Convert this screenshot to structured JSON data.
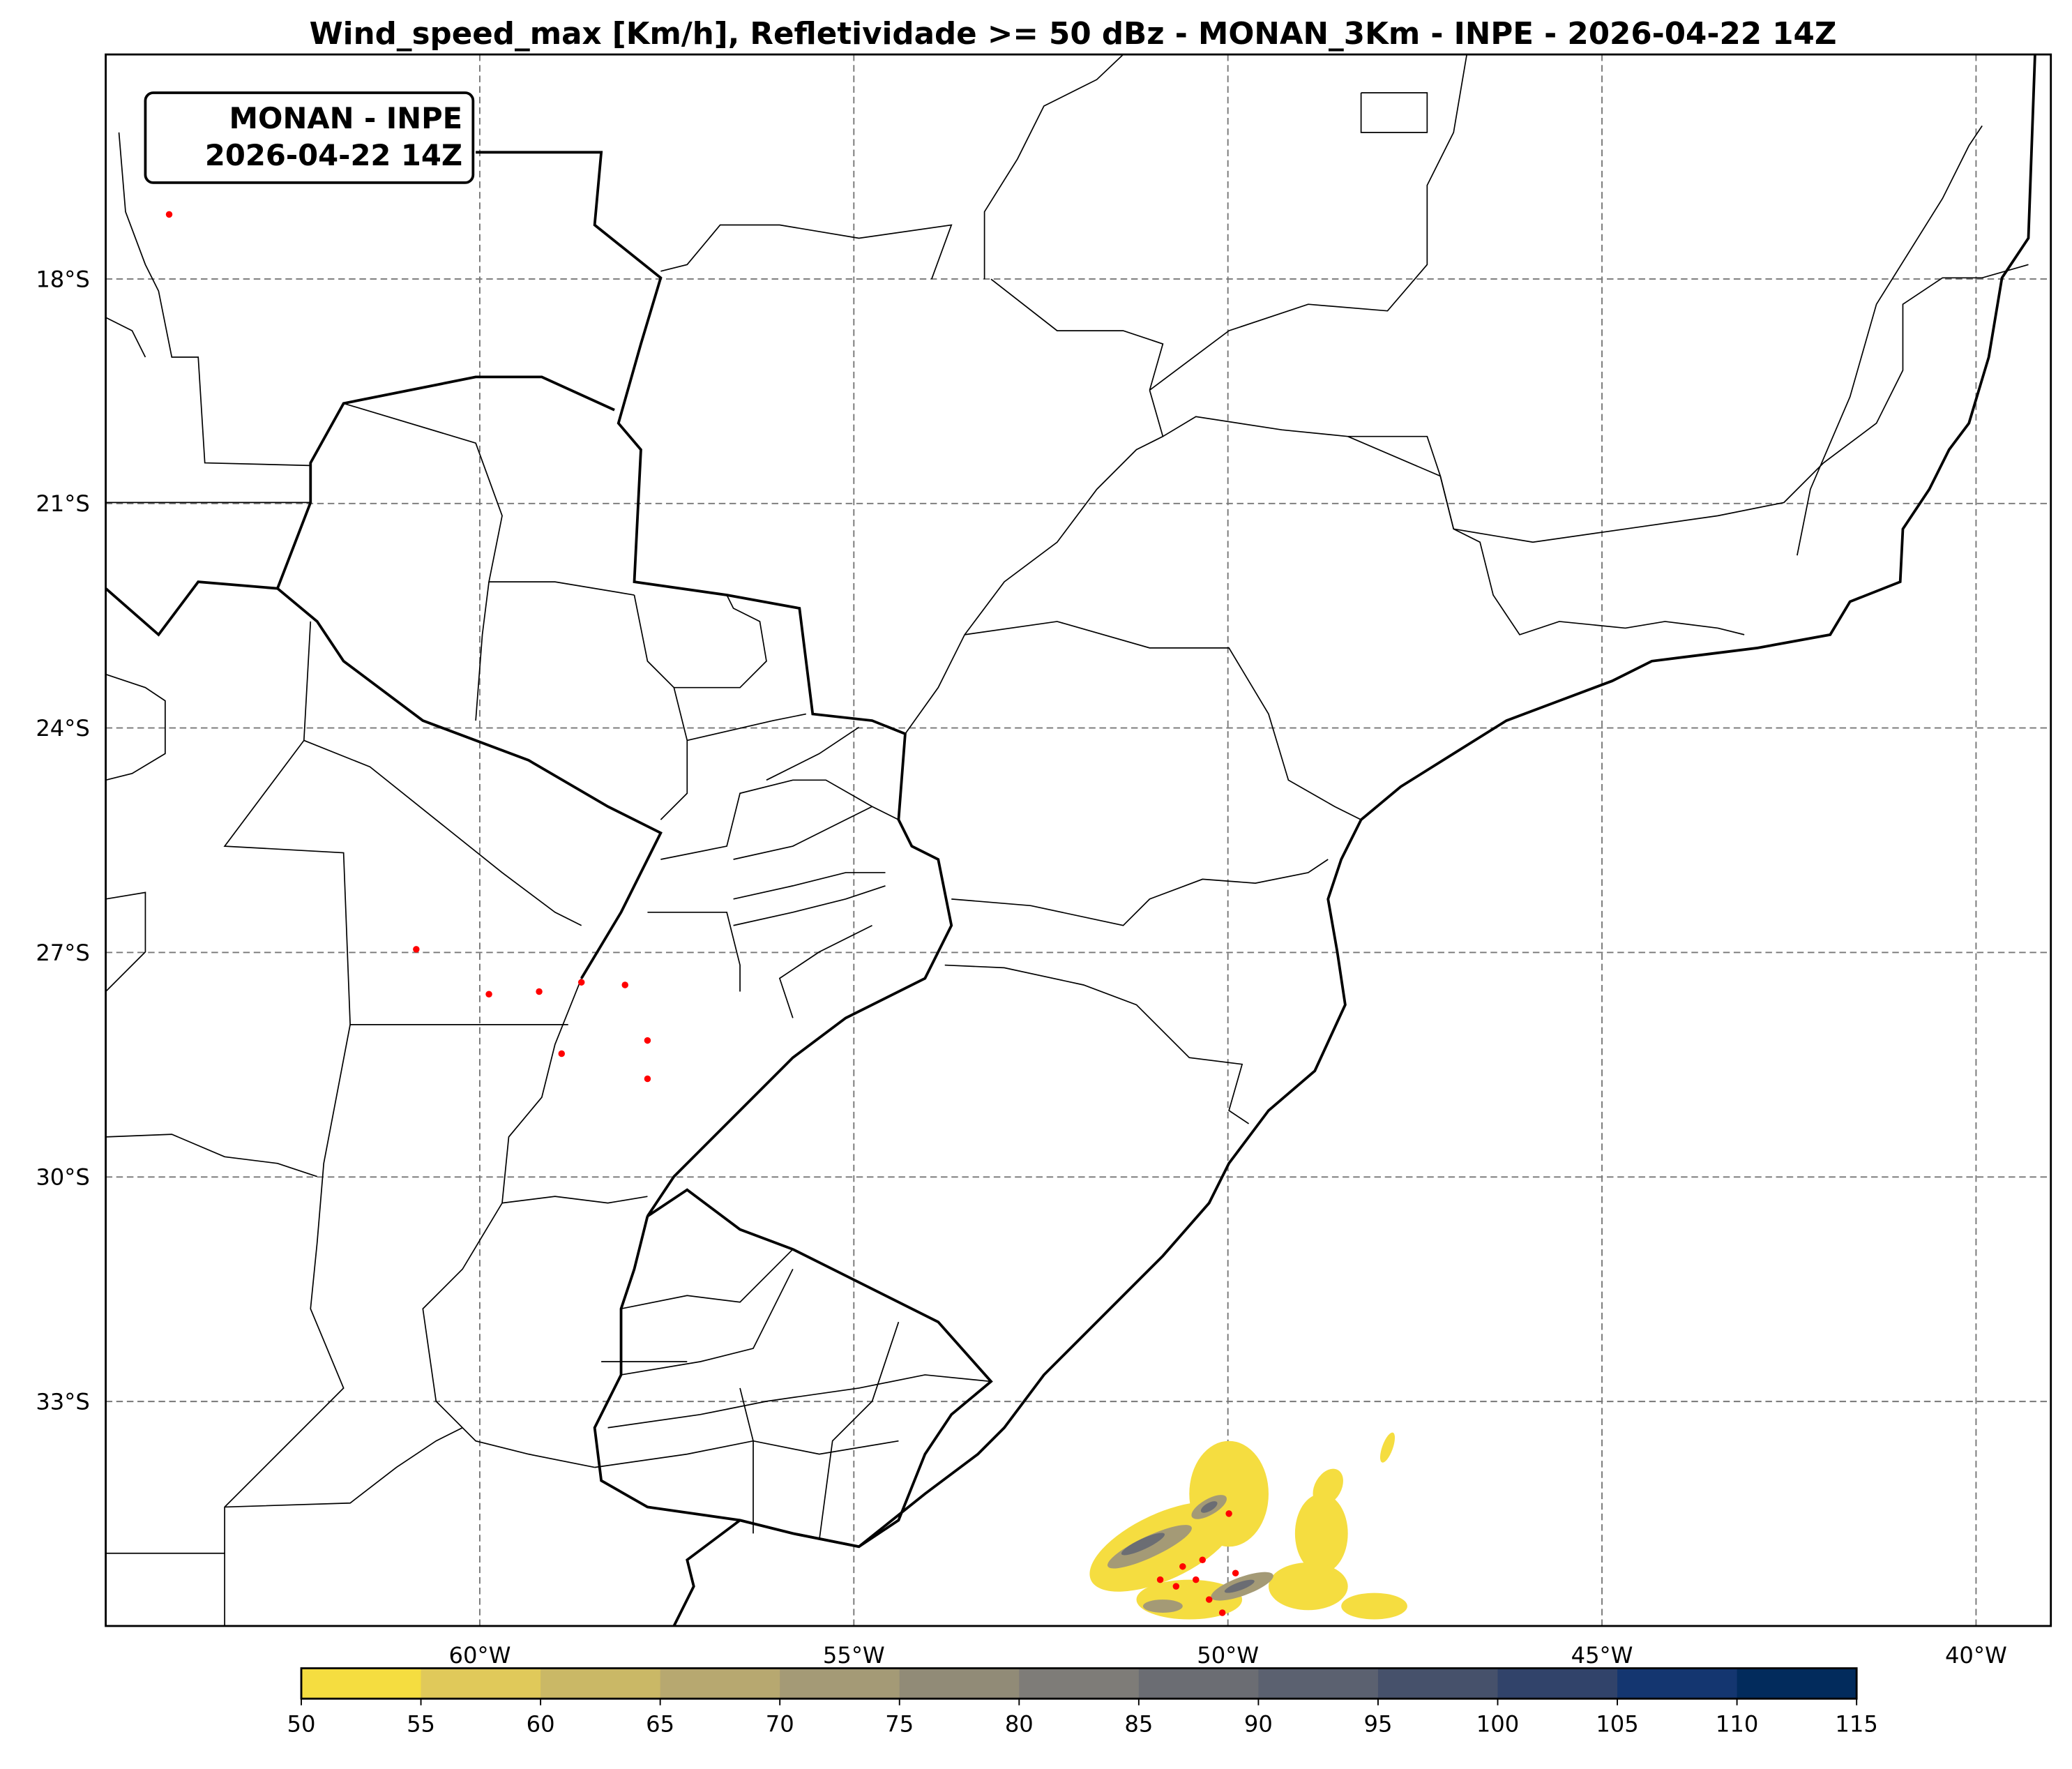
{
  "title": "Wind_speed_max [Km/h], Refletividade >= 50 dBz - MONAN_3Km - INPE - 2026-04-22 14Z",
  "info_box": {
    "line1": "MONAN - INPE",
    "line2": "2026-04-22 14Z"
  },
  "map": {
    "extent": {
      "lon_min": -65,
      "lon_max": -39,
      "lat_min": -36,
      "lat_max": -15
    },
    "gridlines": true,
    "lat_labels": [
      "18°S",
      "21°S",
      "24°S",
      "27°S",
      "30°S",
      "33°S"
    ],
    "lat_values": [
      -18,
      -21,
      -24,
      -27,
      -30,
      -33
    ],
    "lon_labels": [
      "60°W",
      "55°W",
      "50°W",
      "45°W",
      "40°W"
    ],
    "lon_values": [
      -60,
      -55,
      -50,
      -45,
      -40
    ],
    "reflectivity_color": "#ff0000"
  },
  "colorbar": {
    "ticks": [
      "50",
      "55",
      "60",
      "65",
      "70",
      "75",
      "80",
      "85",
      "90",
      "95",
      "100",
      "105",
      "110",
      "115"
    ],
    "colors": [
      "#f5dd40",
      "#e0c95a",
      "#cab866",
      "#b7a870",
      "#a49a76",
      "#918b77",
      "#7e7c78",
      "#6b6d73",
      "#5b6170",
      "#46516b",
      "#31436a",
      "#143670",
      "#022b5c"
    ]
  }
}
